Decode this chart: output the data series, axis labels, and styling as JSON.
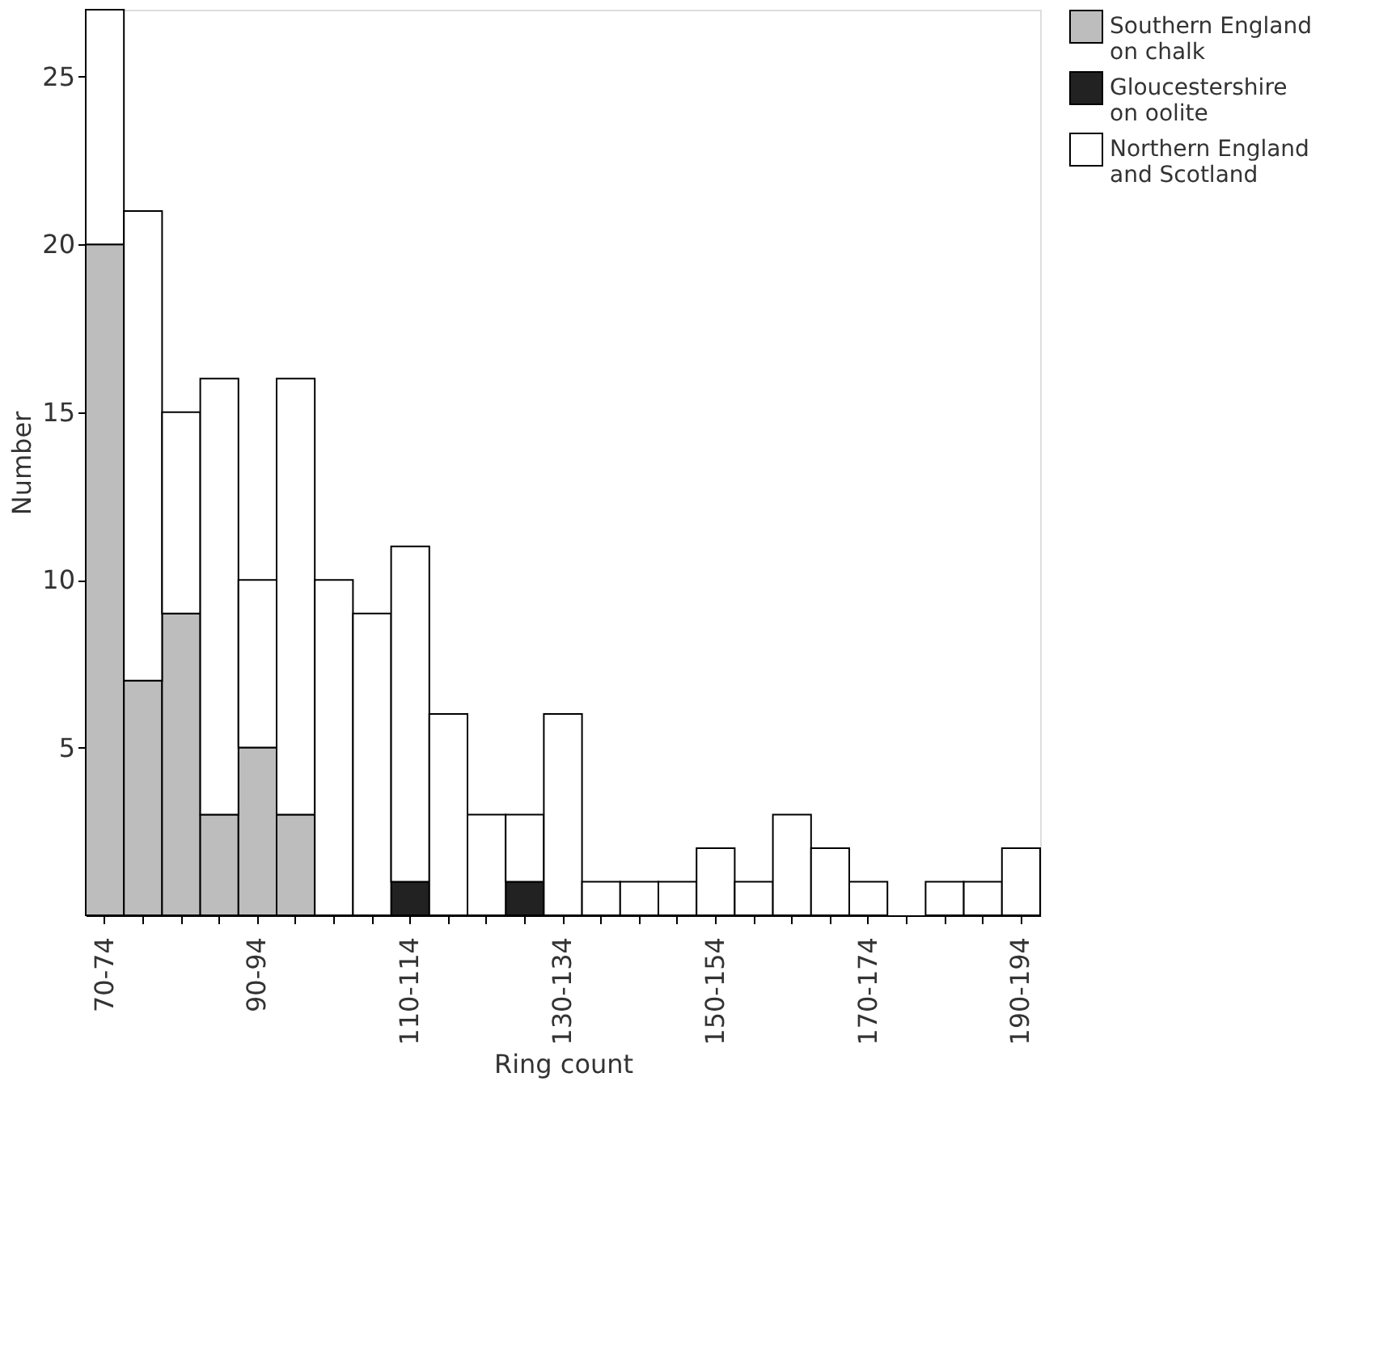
{
  "chart_data": {
    "type": "bar",
    "xlabel": "Ring count",
    "ylabel": "Number",
    "categories": [
      "70-74",
      null,
      null,
      null,
      "90-94",
      null,
      null,
      null,
      "110-114",
      null,
      null,
      null,
      "130-134",
      null,
      null,
      null,
      "150-154",
      null,
      null,
      null,
      "170-174",
      null,
      null,
      null,
      "190-194"
    ],
    "stacked": true,
    "ylim": [
      0,
      27
    ],
    "yticks": [
      5,
      10,
      15,
      20,
      25
    ],
    "grid": false,
    "legend": "top right",
    "series": [
      {
        "name": "Southern England\non chalk",
        "color": "#bdbdbd",
        "values": [
          20,
          7,
          9,
          3,
          5,
          3,
          0,
          0,
          0,
          0,
          0,
          0,
          0,
          0,
          0,
          0,
          0,
          0,
          0,
          0,
          0,
          0,
          0,
          0,
          0
        ]
      },
      {
        "name": "Gloucestershire\non oolite",
        "color": "#222222",
        "values": [
          0,
          0,
          0,
          0,
          0,
          0,
          0,
          0,
          1,
          0,
          0,
          1,
          0,
          0,
          0,
          0,
          0,
          0,
          0,
          0,
          0,
          0,
          0,
          0,
          0
        ]
      },
      {
        "name": "Northern England\nand Scotland",
        "color": "#ffffff",
        "values": [
          7,
          14,
          6,
          13,
          5,
          13,
          10,
          9,
          10,
          6,
          3,
          2,
          6,
          1,
          1,
          1,
          2,
          1,
          3,
          2,
          1,
          0,
          1,
          1,
          2
        ]
      }
    ]
  }
}
